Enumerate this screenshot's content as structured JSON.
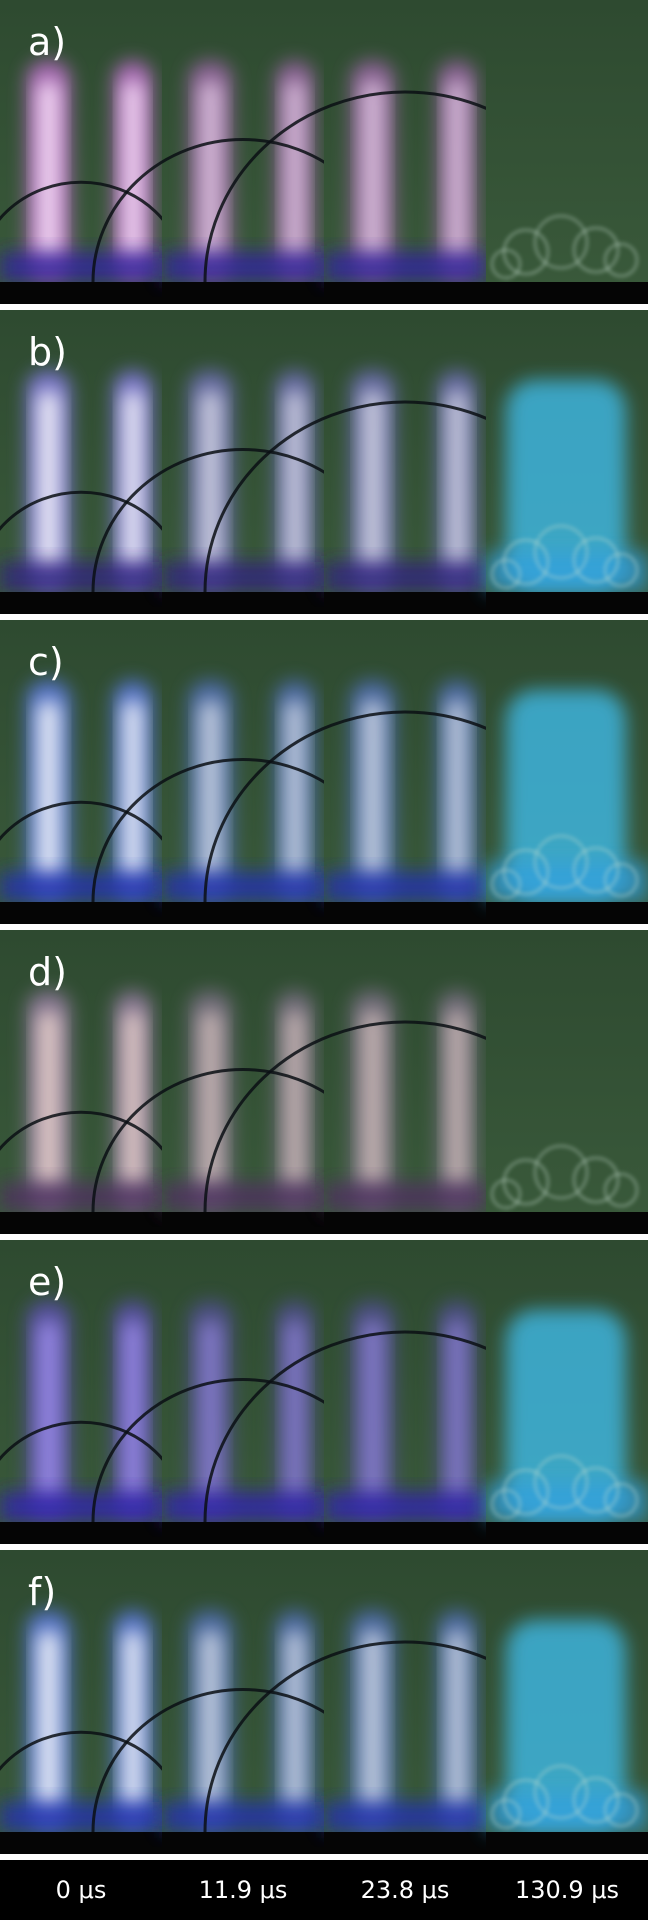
{
  "panels": [
    {
      "label": "a)"
    },
    {
      "label": "b)"
    },
    {
      "label": "c)"
    },
    {
      "label": "d)"
    },
    {
      "label": "e)"
    },
    {
      "label": "f)"
    }
  ],
  "time_labels": [
    "0 μs",
    "11.9 μs",
    "23.8 μs",
    "130.9 μs"
  ]
}
